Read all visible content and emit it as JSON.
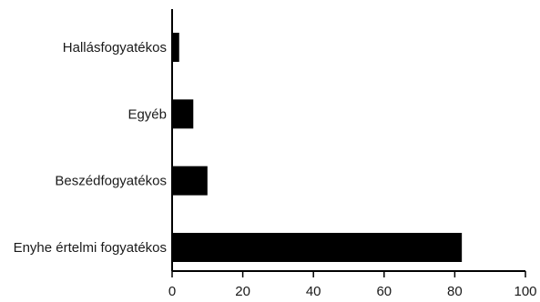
{
  "chart_data": {
    "type": "bar",
    "orientation": "horizontal",
    "categories": [
      "Hallásfogyatékos",
      "Egyéb",
      "Beszédfogyatékos",
      "Enyhe értelmi fogyatékos"
    ],
    "values": [
      2,
      6,
      10,
      82
    ],
    "title": "",
    "xlabel": "",
    "ylabel": "",
    "xlim": [
      0,
      100
    ],
    "xticks": [
      0,
      20,
      40,
      60,
      80,
      100
    ],
    "legend": "none",
    "grid": false,
    "bar_color": "#000000"
  }
}
